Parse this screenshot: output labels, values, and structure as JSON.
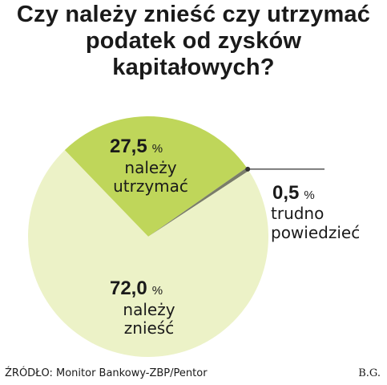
{
  "chart_data": {
    "type": "pie",
    "title_lines": [
      "Czy należy znieść czy utrzymać",
      "podatek od zysków",
      "kapitałowych?"
    ],
    "slices": [
      {
        "value": 27.5,
        "value_text": "27,5",
        "unit": "%",
        "label_lines": [
          "należy",
          "utrzymać"
        ],
        "color": "#bfd65a"
      },
      {
        "value": 0.5,
        "value_text": "0,5",
        "unit": "%",
        "label_lines": [
          "trudno",
          "powiedzieć"
        ],
        "color": "#7a7d6a"
      },
      {
        "value": 72.0,
        "value_text": "72,0",
        "unit": "%",
        "label_lines": [
          "należy",
          "znieść"
        ],
        "color": "#ecf2c7"
      }
    ],
    "legend": "none"
  },
  "footer": {
    "source": "ŹRÓDŁO: Monitor Bankowy-ZBP/Pentor",
    "author": "B.G."
  }
}
